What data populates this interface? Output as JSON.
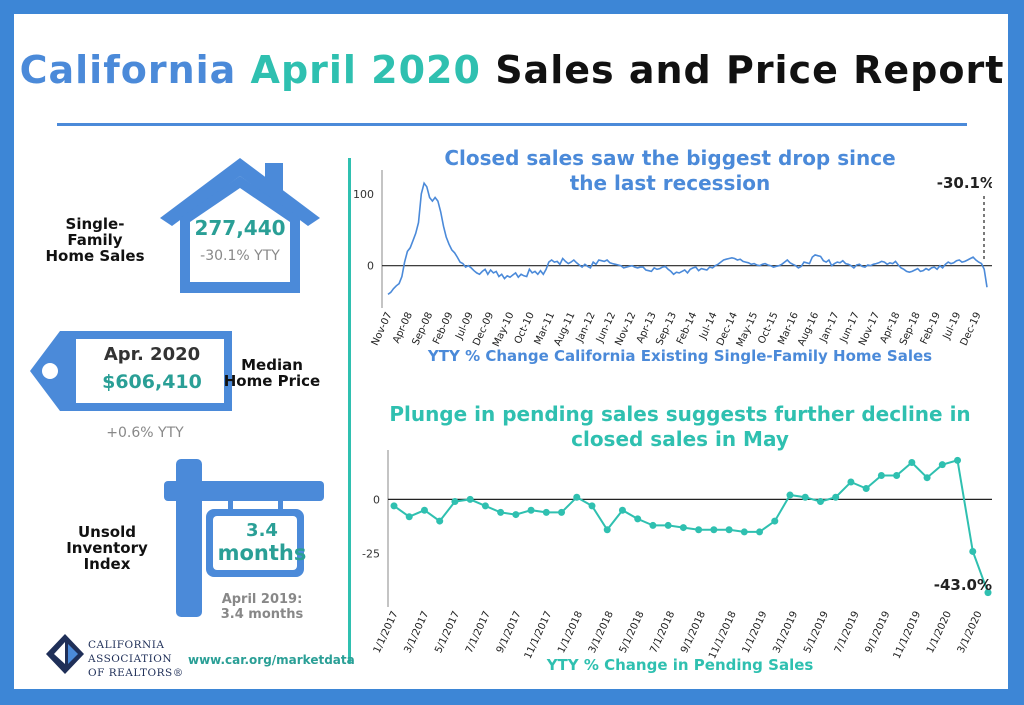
{
  "title": {
    "part1": "California",
    "part2": "April 2020",
    "part3": "Sales and Price Report"
  },
  "colors": {
    "blue": "#4b8ad9",
    "teal": "#2fc0b0",
    "frame": "#3d86d6",
    "dark_teal": "#2a9f96"
  },
  "left": {
    "home_sales": {
      "label_line1": "Single-",
      "label_line2": "Family",
      "label_line3": "Home Sales",
      "value": "277,440",
      "change": "-30.1% YTY"
    },
    "median_price": {
      "label_line1": "Median",
      "label_line2": "Home Price",
      "month": "Apr. 2020",
      "value": "$606,410",
      "change": "+0.6% YTY"
    },
    "inventory": {
      "label_line1": "Unsold",
      "label_line2": "Inventory",
      "label_line3": "Index",
      "value_line1": "3.4",
      "value_line2": "months",
      "prior_line1": "April 2019:",
      "prior_line2": "3.4 months"
    }
  },
  "footer": {
    "url": "www.car.org/marketdata",
    "org_line1": "CALIFORNIA",
    "org_line2": "ASSOCIATION",
    "org_line3": "OF REALTORS®",
    "logo_icon": "car-eagle-logo"
  },
  "chart_data": [
    {
      "type": "line",
      "title_line1": "Closed sales saw the biggest drop since",
      "title_line2": "the last recession",
      "xlabel": "YTY % Change California Existing Single-Family Home Sales",
      "ylabel": "",
      "ylim": [
        -45,
        125
      ],
      "yticks": [
        0,
        100
      ],
      "x_tick_labels": [
        "Nov-07",
        "Apr-08",
        "Sep-08",
        "Feb-09",
        "Jul-09",
        "Dec-09",
        "May-10",
        "Oct-10",
        "Mar-11",
        "Aug-11",
        "Jan-12",
        "Jun-12",
        "Nov-12",
        "Apr-13",
        "Sep-13",
        "Feb-14",
        "Jul-14",
        "Dec-14",
        "May-15",
        "Oct-15",
        "Mar-16",
        "Aug-16",
        "Jan-17",
        "Jun-17",
        "Nov-17",
        "Apr-18",
        "Sep-18",
        "Feb-19",
        "Jul-19",
        "Dec-19"
      ],
      "annotation": "-30.1%",
      "series": [
        {
          "values": [
            -40,
            -37,
            -32,
            -28,
            -25,
            -15,
            5,
            20,
            25,
            35,
            45,
            60,
            100,
            115,
            110,
            95,
            90,
            95,
            90,
            75,
            55,
            40,
            30,
            22,
            18,
            12,
            5,
            3,
            -2,
            0,
            -3,
            -7,
            -10,
            -12,
            -8,
            -5,
            -12,
            -6,
            -10,
            -8,
            -15,
            -12,
            -18,
            -14,
            -16,
            -13,
            -10,
            -16,
            -12,
            -14,
            -15,
            -5,
            -10,
            -8,
            -12,
            -7,
            -12,
            -5,
            5,
            8,
            5,
            6,
            2,
            10,
            6,
            3,
            5,
            8,
            4,
            1,
            -2,
            2,
            -1,
            -3,
            5,
            2,
            8,
            7,
            6,
            8,
            4,
            3,
            2,
            1,
            0,
            -3,
            -2,
            -1,
            0,
            -2,
            -3,
            -2,
            -2,
            -6,
            -7,
            -8,
            -3,
            -5,
            -4,
            -2,
            -1,
            -5,
            -8,
            -12,
            -9,
            -10,
            -8,
            -6,
            -10,
            -5,
            -3,
            -2,
            -7,
            -4,
            -5,
            -6,
            -2,
            -3,
            0,
            2,
            5,
            8,
            9,
            10,
            11,
            10,
            8,
            9,
            6,
            5,
            4,
            2,
            3,
            1,
            0,
            2,
            3,
            1,
            0,
            -2,
            -1,
            0,
            2,
            5,
            8,
            4,
            2,
            0,
            -3,
            -1,
            5,
            4,
            3,
            12,
            15,
            14,
            13,
            7,
            5,
            8,
            0,
            3,
            5,
            4,
            7,
            3,
            2,
            0,
            -3,
            1,
            2,
            -1,
            -2,
            1,
            0,
            2,
            3,
            4,
            6,
            5,
            2,
            4,
            3,
            6,
            1,
            -3,
            -5,
            -8,
            -9,
            -8,
            -6,
            -4,
            -8,
            -7,
            -4,
            -6,
            -3,
            -2,
            -5,
            0,
            -3,
            2,
            5,
            3,
            4,
            7,
            8,
            5,
            6,
            8,
            10,
            12,
            8,
            5,
            3,
            -5,
            -30.1
          ]
        }
      ]
    },
    {
      "type": "line",
      "title_line1": "Plunge in pending sales suggests further decline in",
      "title_line2": "closed sales in May",
      "xlabel": "YTY % Change in Pending Sales",
      "ylabel": "",
      "ylim": [
        -45,
        20
      ],
      "yticks": [
        0,
        -25
      ],
      "x_tick_labels": [
        "1/1/2017",
        "3/1/2017",
        "5/1/2017",
        "7/1/2017",
        "9/1/2017",
        "11/1/2017",
        "1/1/2018",
        "3/1/2018",
        "5/1/2018",
        "7/1/2018",
        "9/1/2018",
        "11/1/2018",
        "1/1/2019",
        "3/1/2019",
        "5/1/2019",
        "7/1/2019",
        "9/1/2019",
        "11/1/2019",
        "1/1/2020",
        "3/1/2020"
      ],
      "annotation": "-43.0%",
      "series": [
        {
          "values": [
            -3,
            -8,
            -5,
            -10,
            -1,
            0,
            -3,
            -6,
            -7,
            -5,
            -6,
            -6,
            1,
            -3,
            -14,
            -5,
            -9,
            -12,
            -12,
            -13,
            -14,
            -14,
            -14,
            -15,
            -15,
            -10,
            2,
            1,
            -1,
            1,
            8,
            5,
            11,
            11,
            17,
            10,
            16,
            18,
            -24,
            -43
          ]
        }
      ]
    }
  ]
}
